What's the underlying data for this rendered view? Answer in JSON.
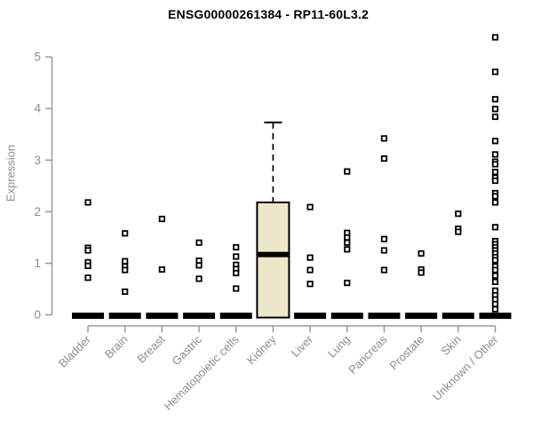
{
  "chart_data": {
    "type": "boxplot",
    "title": "ENSG00000261384 - RP11-60L3.2",
    "ylabel": "Expression",
    "xlabel": "",
    "ylim": [
      0,
      5
    ],
    "yticks": [
      0,
      1,
      2,
      3,
      4,
      5
    ],
    "grid": false,
    "legend": "none",
    "categories": [
      "Bladder",
      "Brain",
      "Breast",
      "Gastric",
      "Hematopoietic cells",
      "Kidney",
      "Liver",
      "Lung",
      "Pancreas",
      "Prostate",
      "Skin",
      "Unknown / Other"
    ],
    "boxes": [
      {
        "category": "Bladder",
        "q1": 0,
        "median": 0,
        "q3": 0,
        "whisker_low": 0,
        "whisker_high": 0,
        "outliers": [
          2.18,
          1.3,
          1.25,
          1.02,
          0.95,
          0.72
        ]
      },
      {
        "category": "Brain",
        "q1": 0,
        "median": 0,
        "q3": 0,
        "whisker_low": 0,
        "whisker_high": 0,
        "outliers": [
          1.58,
          1.04,
          0.94,
          0.87,
          0.45
        ]
      },
      {
        "category": "Breast",
        "q1": 0,
        "median": 0,
        "q3": 0,
        "whisker_low": 0,
        "whisker_high": 0,
        "outliers": [
          1.86,
          0.88
        ]
      },
      {
        "category": "Gastric",
        "q1": 0,
        "median": 0,
        "q3": 0,
        "whisker_low": 0,
        "whisker_high": 0,
        "outliers": [
          1.4,
          1.05,
          0.96,
          0.7
        ]
      },
      {
        "category": "Hematopoietic cells",
        "q1": 0,
        "median": 0,
        "q3": 0,
        "whisker_low": 0,
        "whisker_high": 0,
        "outliers": [
          1.31,
          1.13,
          0.97,
          0.89,
          0.81,
          0.51
        ]
      },
      {
        "category": "Kidney",
        "q1": 0,
        "median": 1.17,
        "q3": 2.18,
        "whisker_low": 0,
        "whisker_high": 3.73,
        "outliers": []
      },
      {
        "category": "Liver",
        "q1": 0,
        "median": 0,
        "q3": 0,
        "whisker_low": 0,
        "whisker_high": 0,
        "outliers": [
          2.09,
          1.11,
          0.87,
          0.6
        ]
      },
      {
        "category": "Lung",
        "q1": 0,
        "median": 0,
        "q3": 0,
        "whisker_low": 0,
        "whisker_high": 0,
        "outliers": [
          2.78,
          1.59,
          1.5,
          1.4,
          1.27,
          0.62
        ]
      },
      {
        "category": "Pancreas",
        "q1": 0,
        "median": 0,
        "q3": 0,
        "whisker_low": 0,
        "whisker_high": 0,
        "outliers": [
          3.42,
          3.03,
          1.47,
          1.25,
          0.87
        ]
      },
      {
        "category": "Prostate",
        "q1": 0,
        "median": 0,
        "q3": 0,
        "whisker_low": 0,
        "whisker_high": 0,
        "outliers": [
          1.19,
          0.88,
          0.82
        ]
      },
      {
        "category": "Skin",
        "q1": 0,
        "median": 0,
        "q3": 0,
        "whisker_low": 0,
        "whisker_high": 0,
        "outliers": [
          1.96,
          1.67,
          1.61
        ]
      },
      {
        "category": "Unknown / Other",
        "q1": 0,
        "median": 0,
        "q3": 0,
        "whisker_low": 0,
        "whisker_high": 0,
        "outliers": [
          5.38,
          4.71,
          4.18,
          3.99,
          3.84,
          3.37,
          3.11,
          2.97,
          2.92,
          2.77,
          2.66,
          2.6,
          2.36,
          2.3,
          2.18,
          1.7,
          1.43,
          1.37,
          1.31,
          1.25,
          1.19,
          1.12,
          1.06,
          0.94,
          0.87,
          0.76,
          0.64,
          0.47,
          0.38,
          0.3,
          0.21,
          0.11
        ]
      }
    ],
    "colors": {
      "background": "#ffffff",
      "box_fill": "#ece7c9",
      "box_stroke": "#000000",
      "median": "#000000",
      "whisker": "#000000",
      "point_stroke": "#000000",
      "point_fill": "#ffffff",
      "axis": "#9a9a9a",
      "tick_label": "#8c8c8c",
      "title": "#000000"
    }
  }
}
